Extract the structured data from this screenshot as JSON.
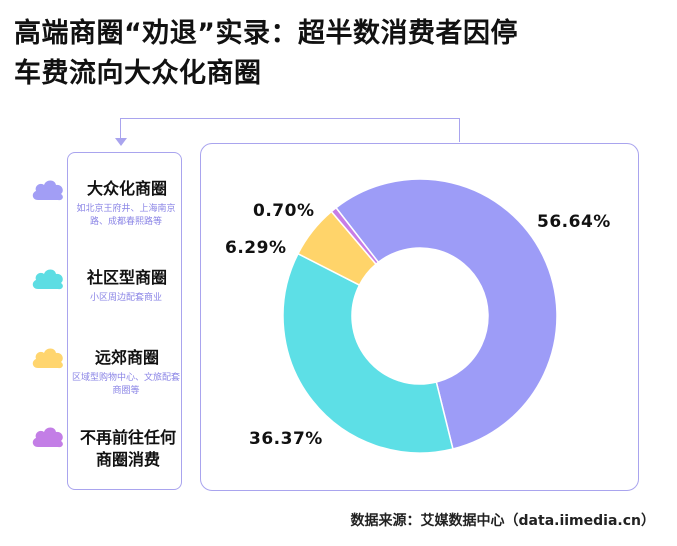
{
  "title": {
    "line1": "高端商圈“劝退”实录：超半数消费者因停",
    "line2": "车费流向大众化商圈"
  },
  "legend": [
    {
      "name": "大众化商圈",
      "desc": "如北京王府井、上海南京路、成都春熙路等",
      "icon": "cloud-icon",
      "color": "#a29ef5"
    },
    {
      "name": "社区型商圈",
      "desc": "小区周边配套商业",
      "icon": "cloud-icon",
      "color": "#5ddde3"
    },
    {
      "name": "远郊商圈",
      "desc": "区域型购物中心、文旅配套商圈等",
      "icon": "cloud-icon",
      "color": "#ffd56e"
    },
    {
      "name": "不再前往任何商圈消费",
      "desc": "",
      "icon": "cloud-icon",
      "color": "#c37ee6"
    }
  ],
  "chart_data": {
    "type": "pie",
    "donut": true,
    "categories": [
      "大众化商圈",
      "社区型商圈",
      "远郊商圈",
      "不再前往任何商圈消费"
    ],
    "values": [
      56.64,
      36.37,
      6.29,
      0.7
    ],
    "labels": [
      "56.64%",
      "36.37%",
      "6.29%",
      "0.70%"
    ],
    "colors": [
      "#9d9cf7",
      "#5ddfe6",
      "#ffd46a",
      "#c87de6"
    ]
  },
  "source": "数据来源：艾媒数据中心（data.iimedia.cn）"
}
